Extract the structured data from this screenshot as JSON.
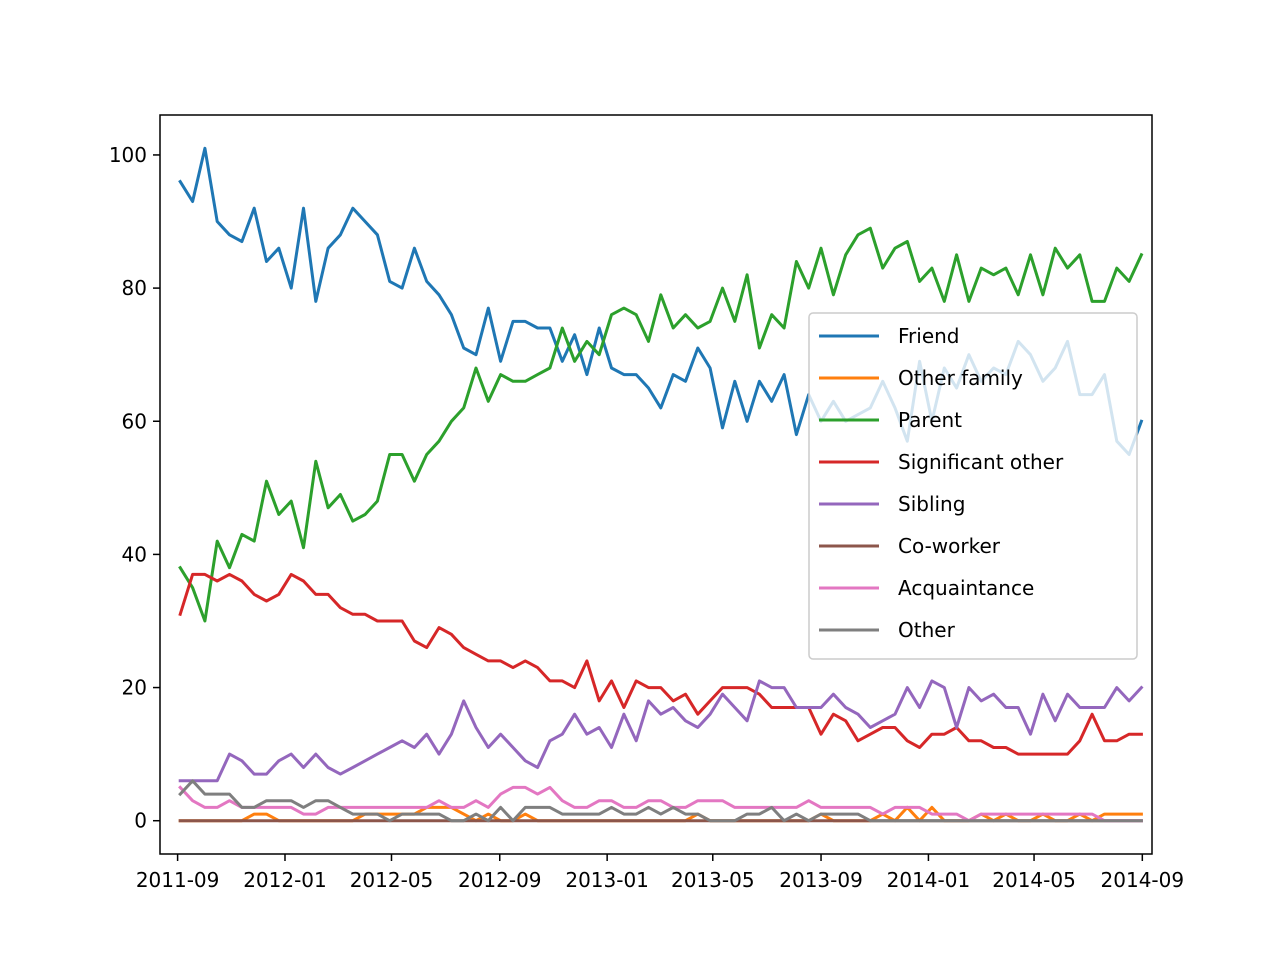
{
  "chart_data": {
    "type": "line",
    "title": "",
    "xlabel": "",
    "ylabel": "",
    "x_ticks": [
      "2011-09",
      "2012-01",
      "2012-05",
      "2012-09",
      "2013-01",
      "2013-05",
      "2013-09",
      "2014-01",
      "2014-05",
      "2014-09"
    ],
    "x_range": [
      "2011-08-12",
      "2014-09-12"
    ],
    "x": [
      "2011-09-04",
      "2011-09-18",
      "2011-10-02",
      "2011-10-16",
      "2011-10-30",
      "2011-11-13",
      "2011-11-27",
      "2011-12-11",
      "2011-12-25",
      "2012-01-08",
      "2012-01-22",
      "2012-02-05",
      "2012-02-19",
      "2012-03-04",
      "2012-03-18",
      "2012-04-01",
      "2012-04-15",
      "2012-04-29",
      "2012-05-13",
      "2012-05-27",
      "2012-06-10",
      "2012-06-24",
      "2012-07-08",
      "2012-07-22",
      "2012-08-05",
      "2012-08-19",
      "2012-09-02",
      "2012-09-16",
      "2012-09-30",
      "2012-10-14",
      "2012-10-28",
      "2012-11-11",
      "2012-11-25",
      "2012-12-09",
      "2012-12-23",
      "2013-01-06",
      "2013-01-20",
      "2013-02-03",
      "2013-02-17",
      "2013-03-03",
      "2013-03-17",
      "2013-03-31",
      "2013-04-14",
      "2013-04-28",
      "2013-05-12",
      "2013-05-26",
      "2013-06-09",
      "2013-06-23",
      "2013-07-07",
      "2013-07-21",
      "2013-08-04",
      "2013-08-18",
      "2013-09-01",
      "2013-09-15",
      "2013-09-29",
      "2013-10-13",
      "2013-10-27",
      "2013-11-10",
      "2013-11-24",
      "2013-12-08",
      "2013-12-22",
      "2014-01-05",
      "2014-01-19",
      "2014-02-02",
      "2014-02-16",
      "2014-03-02",
      "2014-03-16",
      "2014-03-30",
      "2014-04-13",
      "2014-04-27",
      "2014-05-11",
      "2014-05-25",
      "2014-06-08",
      "2014-06-22",
      "2014-07-06",
      "2014-07-20",
      "2014-08-03",
      "2014-08-17",
      "2014-08-31"
    ],
    "ylim": [
      -5,
      106
    ],
    "y_ticks": [
      0,
      20,
      40,
      60,
      80,
      100
    ],
    "grid": false,
    "legend_position": "center-right",
    "series": [
      {
        "name": "Friend",
        "color": "#1f77b4",
        "values": [
          96,
          93,
          101,
          90,
          88,
          87,
          92,
          84,
          86,
          80,
          92,
          78,
          86,
          88,
          92,
          90,
          88,
          81,
          80,
          86,
          81,
          79,
          76,
          71,
          70,
          77,
          69,
          75,
          75,
          74,
          74,
          69,
          73,
          67,
          74,
          68,
          67,
          67,
          65,
          62,
          67,
          66,
          71,
          68,
          59,
          66,
          60,
          66,
          63,
          67,
          58,
          64,
          60,
          63,
          60,
          61,
          62,
          66,
          62,
          57,
          69,
          60,
          68,
          65,
          70,
          66,
          68,
          67,
          72,
          70,
          66,
          68,
          72,
          64,
          64,
          67,
          57,
          55,
          60
        ]
      },
      {
        "name": "Other family",
        "color": "#ff7f0e",
        "values": [
          0,
          0,
          0,
          0,
          0,
          0,
          1,
          1,
          0,
          0,
          0,
          0,
          0,
          0,
          0,
          1,
          1,
          1,
          1,
          1,
          2,
          2,
          2,
          1,
          0,
          1,
          0,
          0,
          1,
          0,
          0,
          0,
          0,
          0,
          0,
          0,
          0,
          0,
          0,
          0,
          0,
          0,
          1,
          0,
          0,
          0,
          0,
          0,
          0,
          0,
          0,
          0,
          1,
          0,
          0,
          0,
          0,
          1,
          0,
          2,
          0,
          2,
          0,
          0,
          0,
          1,
          0,
          1,
          0,
          0,
          1,
          0,
          0,
          1,
          0,
          1,
          1,
          1,
          1
        ]
      },
      {
        "name": "Parent",
        "color": "#2ca02c",
        "values": [
          38,
          35,
          30,
          42,
          38,
          43,
          42,
          51,
          46,
          48,
          41,
          54,
          47,
          49,
          45,
          46,
          48,
          55,
          55,
          51,
          55,
          57,
          60,
          62,
          68,
          63,
          67,
          66,
          66,
          67,
          68,
          74,
          69,
          72,
          70,
          76,
          77,
          76,
          72,
          79,
          74,
          76,
          74,
          75,
          80,
          75,
          82,
          71,
          76,
          74,
          84,
          80,
          86,
          79,
          85,
          88,
          89,
          83,
          86,
          87,
          81,
          83,
          78,
          85,
          78,
          83,
          82,
          83,
          79,
          85,
          79,
          86,
          83,
          85,
          78,
          78,
          83,
          81,
          85
        ]
      },
      {
        "name": "Significant other",
        "color": "#d62728",
        "values": [
          31,
          37,
          37,
          36,
          37,
          36,
          34,
          33,
          34,
          37,
          36,
          34,
          34,
          32,
          31,
          31,
          30,
          30,
          30,
          27,
          26,
          29,
          28,
          26,
          25,
          24,
          24,
          23,
          24,
          23,
          21,
          21,
          20,
          24,
          18,
          21,
          17,
          21,
          20,
          20,
          18,
          19,
          16,
          18,
          20,
          20,
          20,
          19,
          17,
          17,
          17,
          17,
          13,
          16,
          15,
          12,
          13,
          14,
          14,
          12,
          11,
          13,
          13,
          14,
          12,
          12,
          11,
          11,
          10,
          10,
          10,
          10,
          10,
          12,
          16,
          12,
          12,
          13,
          13
        ]
      },
      {
        "name": "Sibling",
        "color": "#9467bd",
        "values": [
          6,
          6,
          6,
          6,
          10,
          9,
          7,
          7,
          9,
          10,
          8,
          10,
          8,
          7,
          8,
          9,
          10,
          11,
          12,
          11,
          13,
          10,
          13,
          18,
          14,
          11,
          13,
          11,
          9,
          8,
          12,
          13,
          16,
          13,
          14,
          11,
          16,
          12,
          18,
          16,
          17,
          15,
          14,
          16,
          19,
          17,
          15,
          21,
          20,
          20,
          17,
          17,
          17,
          19,
          17,
          16,
          14,
          15,
          16,
          20,
          17,
          21,
          20,
          14,
          20,
          18,
          19,
          17,
          17,
          13,
          19,
          15,
          19,
          17,
          17,
          17,
          20,
          18,
          20
        ]
      },
      {
        "name": "Co-worker",
        "color": "#8c564b",
        "values": [
          0,
          0,
          0,
          0,
          0,
          0,
          0,
          0,
          0,
          0,
          0,
          0,
          0,
          0,
          0,
          0,
          0,
          0,
          0,
          0,
          0,
          0,
          0,
          0,
          0,
          0,
          0,
          0,
          0,
          0,
          0,
          0,
          0,
          0,
          0,
          0,
          0,
          0,
          0,
          0,
          0,
          0,
          0,
          0,
          0,
          0,
          0,
          0,
          0,
          0,
          0,
          0,
          0,
          0,
          0,
          0,
          0,
          0,
          0,
          0,
          0,
          0,
          0,
          0,
          0,
          0,
          0,
          0,
          0,
          0,
          0,
          0,
          0,
          0,
          0,
          0,
          0,
          0,
          0
        ]
      },
      {
        "name": "Acquaintance",
        "color": "#e377c2",
        "values": [
          5,
          3,
          2,
          2,
          3,
          2,
          2,
          2,
          2,
          2,
          1,
          1,
          2,
          2,
          2,
          2,
          2,
          2,
          2,
          2,
          2,
          3,
          2,
          2,
          3,
          2,
          4,
          5,
          5,
          4,
          5,
          3,
          2,
          2,
          3,
          3,
          2,
          2,
          3,
          3,
          2,
          2,
          3,
          3,
          3,
          2,
          2,
          2,
          2,
          2,
          2,
          3,
          2,
          2,
          2,
          2,
          2,
          1,
          2,
          2,
          2,
          1,
          1,
          1,
          0,
          1,
          1,
          1,
          1,
          1,
          1,
          1,
          1,
          1,
          1,
          0,
          0,
          0,
          0
        ]
      },
      {
        "name": "Other",
        "color": "#7f7f7f",
        "values": [
          4,
          6,
          4,
          4,
          4,
          2,
          2,
          3,
          3,
          3,
          2,
          3,
          3,
          2,
          1,
          1,
          1,
          0,
          1,
          1,
          1,
          1,
          0,
          0,
          1,
          0,
          2,
          0,
          2,
          2,
          2,
          1,
          1,
          1,
          1,
          2,
          1,
          1,
          2,
          1,
          2,
          1,
          1,
          0,
          0,
          0,
          1,
          1,
          2,
          0,
          1,
          0,
          1,
          1,
          1,
          1,
          0,
          0,
          0,
          0,
          0,
          0,
          0,
          0,
          0,
          0,
          0,
          0,
          0,
          0,
          0,
          0,
          0,
          0,
          0,
          0,
          0,
          0,
          0
        ]
      }
    ]
  }
}
